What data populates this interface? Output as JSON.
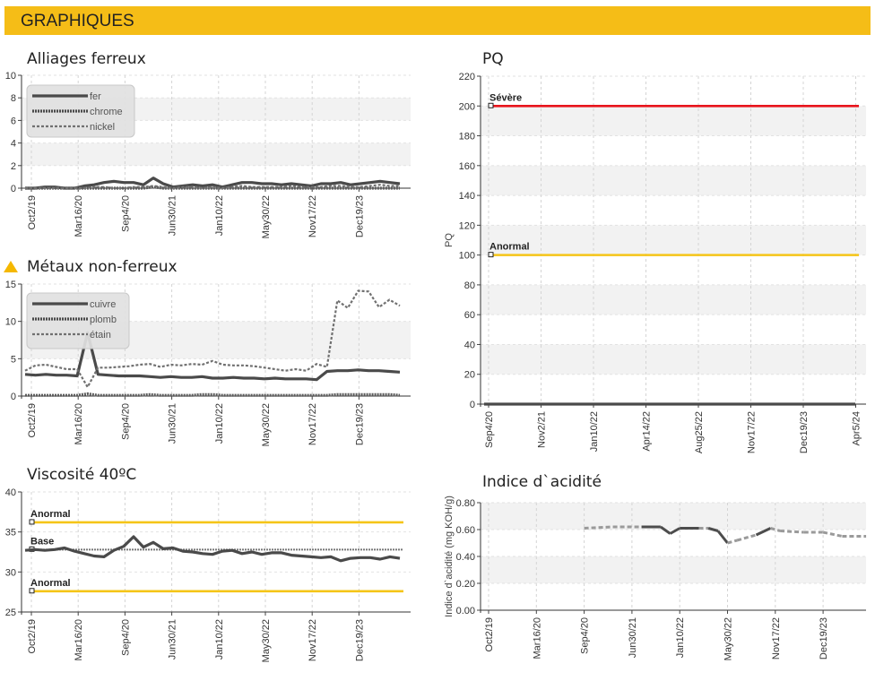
{
  "header": {
    "title": "GRAPHIQUES"
  },
  "colors": {
    "banner": "#f5bd17",
    "severe": "#e8141c",
    "abnormal": "#f5c518",
    "base": "#777777",
    "series": "#444444",
    "warning": "#f5b800"
  },
  "icons": {
    "warning": "warning-triangle-icon"
  },
  "chart_data": [
    {
      "id": "ferrous",
      "type": "line",
      "title": "Alliages ferreux",
      "ylim": [
        0,
        10
      ],
      "yticks": [
        0,
        2,
        4,
        6,
        8,
        10
      ],
      "xtick_labels": [
        "Oct2/19",
        "Mar16/20",
        "Sep4/20",
        "Jun30/21",
        "Jan10/22",
        "May30/22",
        "Nov17/22",
        "Dec19/23"
      ],
      "legend_position": "top-left",
      "series": [
        {
          "name": "fer",
          "style": "solid",
          "values": [
            0.0,
            0.0,
            0.1,
            0.1,
            0.0,
            0.0,
            0.2,
            0.3,
            0.5,
            0.6,
            0.5,
            0.5,
            0.3,
            0.9,
            0.4,
            0.1,
            0.2,
            0.3,
            0.2,
            0.3,
            0.1,
            0.3,
            0.5,
            0.5,
            0.4,
            0.4,
            0.3,
            0.4,
            0.3,
            0.2,
            0.4,
            0.4,
            0.5,
            0.3,
            0.4,
            0.5,
            0.6,
            0.5,
            0.4
          ]
        },
        {
          "name": "chrome",
          "style": "dense",
          "values": [
            0.0,
            0.0,
            0.0,
            0.0,
            0.0,
            0.0,
            0.0,
            0.0,
            0.0,
            0.0,
            0.0,
            0.0,
            0.0,
            0.1,
            0.0,
            0.0,
            0.0,
            0.0,
            0.0,
            0.0,
            0.0,
            0.0,
            0.0,
            0.0,
            0.0,
            0.0,
            0.0,
            0.0,
            0.0,
            0.0,
            0.0,
            0.0,
            0.0,
            0.0,
            0.0,
            0.0,
            0.0,
            0.0,
            0.0
          ]
        },
        {
          "name": "nickel",
          "style": "dashed",
          "values": [
            0.0,
            0.0,
            0.0,
            0.0,
            0.0,
            0.0,
            0.0,
            0.1,
            0.1,
            0.0,
            0.0,
            0.1,
            0.1,
            0.2,
            0.1,
            0.0,
            0.1,
            0.1,
            0.0,
            0.1,
            0.0,
            0.1,
            0.2,
            0.1,
            0.1,
            0.1,
            0.1,
            0.2,
            0.1,
            0.1,
            0.1,
            0.2,
            0.2,
            0.1,
            0.1,
            0.2,
            0.3,
            0.2,
            0.2
          ]
        }
      ]
    },
    {
      "id": "nonferrous",
      "type": "line",
      "title": "Métaux non-ferreux",
      "ylim": [
        0,
        15
      ],
      "yticks": [
        0,
        5,
        10,
        15
      ],
      "xtick_labels": [
        "Oct2/19",
        "Mar16/20",
        "Sep4/20",
        "Jun30/21",
        "Jan10/22",
        "May30/22",
        "Nov17/22",
        "Dec19/23"
      ],
      "legend_position": "top-left",
      "series": [
        {
          "name": "cuivre",
          "style": "solid",
          "values": [
            2.9,
            2.8,
            2.9,
            2.8,
            2.8,
            2.7,
            8.5,
            2.9,
            2.8,
            2.7,
            2.7,
            2.7,
            2.6,
            2.5,
            2.6,
            2.5,
            2.5,
            2.6,
            2.4,
            2.4,
            2.5,
            2.4,
            2.4,
            2.3,
            2.4,
            2.3,
            2.3,
            2.3,
            2.2,
            3.3,
            3.4,
            3.4,
            3.5,
            3.4,
            3.4,
            3.3,
            3.2
          ]
        },
        {
          "name": "plomb",
          "style": "dense",
          "values": [
            0.1,
            0.1,
            0.1,
            0.1,
            0.1,
            0.1,
            0.3,
            0.1,
            0.1,
            0.1,
            0.1,
            0.1,
            0.2,
            0.1,
            0.1,
            0.1,
            0.1,
            0.2,
            0.2,
            0.1,
            0.1,
            0.1,
            0.1,
            0.1,
            0.1,
            0.1,
            0.1,
            0.1,
            0.1,
            0.1,
            0.2,
            0.2,
            0.2,
            0.2,
            0.2,
            0.2,
            0.1
          ]
        },
        {
          "name": "étain",
          "style": "dashed",
          "values": [
            3.4,
            4.1,
            4.2,
            3.9,
            3.6,
            3.6,
            1.2,
            3.8,
            3.8,
            3.9,
            4.0,
            4.2,
            4.3,
            3.9,
            4.2,
            4.1,
            4.3,
            4.2,
            4.7,
            4.2,
            4.1,
            4.1,
            4.0,
            3.8,
            3.6,
            3.4,
            3.6,
            3.4,
            4.3,
            3.9,
            12.8,
            11.8,
            14.1,
            14.0,
            11.9,
            12.9,
            12.1
          ]
        }
      ]
    },
    {
      "id": "viscosity",
      "type": "line",
      "title": "Viscosité 40ºC",
      "ylim": [
        25,
        40
      ],
      "yticks": [
        25,
        30,
        35,
        40
      ],
      "xtick_labels": [
        "Oct2/19",
        "Mar16/20",
        "Sep4/20",
        "Jun30/21",
        "Jan10/22",
        "May30/22",
        "Nov17/22",
        "Dec19/23"
      ],
      "reference_lines": [
        {
          "label": "Anormal",
          "value": 36.2,
          "kind": "abnormal"
        },
        {
          "label": "Base",
          "value": 32.8,
          "kind": "base"
        },
        {
          "label": "Anormal",
          "value": 27.6,
          "kind": "abnormal"
        }
      ],
      "series": [
        {
          "name": "Viscosité 40ºC",
          "style": "solid",
          "values": [
            32.7,
            32.8,
            32.7,
            32.8,
            33.0,
            32.6,
            32.3,
            32.0,
            31.9,
            32.7,
            33.2,
            34.4,
            33.1,
            33.7,
            32.9,
            33.0,
            32.6,
            32.5,
            32.3,
            32.2,
            32.6,
            32.7,
            32.3,
            32.5,
            32.2,
            32.4,
            32.4,
            32.1,
            32.0,
            31.9,
            31.8,
            31.9,
            31.4,
            31.7,
            31.8,
            31.8,
            31.6,
            31.9,
            31.7
          ]
        }
      ]
    },
    {
      "id": "pq",
      "type": "line",
      "title": "PQ",
      "ylabel": "PQ",
      "ylim": [
        0,
        220
      ],
      "yticks": [
        0,
        20,
        40,
        60,
        80,
        100,
        120,
        140,
        160,
        180,
        200,
        220
      ],
      "xtick_labels": [
        "Sep4/20",
        "Nov2/21",
        "Jan10/22",
        "Apr14/22",
        "Aug25/22",
        "Nov17/22",
        "Dec19/23",
        "Apr5/24"
      ],
      "reference_lines": [
        {
          "label": "Sévère",
          "value": 200,
          "kind": "severe"
        },
        {
          "label": "Anormal",
          "value": 100,
          "kind": "abnormal"
        }
      ],
      "series": [
        {
          "name": "PQ",
          "style": "solid",
          "values": [
            0,
            0,
            0,
            0,
            0,
            0,
            0,
            0,
            0,
            0,
            0,
            0,
            0,
            0,
            0,
            0,
            0,
            0,
            0,
            0
          ]
        }
      ]
    },
    {
      "id": "acid",
      "type": "line",
      "title": "Indice d`acidité",
      "ylabel": "Indice d`acidité (mg KOH/g)",
      "ylim": [
        0,
        0.8
      ],
      "yticks": [
        "0.00",
        "0.20",
        "0.40",
        "0.60",
        "0.80"
      ],
      "xtick_labels": [
        "Oct2/19",
        "Mar16/20",
        "Sep4/20",
        "Jun30/21",
        "Jan10/22",
        "May30/22",
        "Nov17/22",
        "Dec19/23"
      ],
      "series": [
        {
          "name": "Indice d`acidité",
          "style": "mixed",
          "points": [
            [
              2.0,
              0.61,
              "d"
            ],
            [
              2.6,
              0.62,
              "d"
            ],
            [
              3.2,
              0.62,
              "d"
            ],
            [
              3.6,
              0.62,
              "s"
            ],
            [
              3.8,
              0.57,
              "s"
            ],
            [
              4.0,
              0.61,
              "s"
            ],
            [
              4.4,
              0.61,
              "s"
            ],
            [
              4.6,
              0.61,
              "d"
            ],
            [
              4.8,
              0.59,
              "s"
            ],
            [
              5.0,
              0.5,
              "s"
            ],
            [
              5.2,
              0.52,
              "d"
            ],
            [
              5.6,
              0.56,
              "d"
            ],
            [
              5.9,
              0.61,
              "s"
            ],
            [
              6.1,
              0.59,
              "d"
            ],
            [
              6.6,
              0.58,
              "d"
            ],
            [
              7.0,
              0.58,
              "d"
            ],
            [
              7.4,
              0.55,
              "d"
            ],
            [
              7.9,
              0.55,
              "d"
            ]
          ]
        }
      ]
    }
  ]
}
